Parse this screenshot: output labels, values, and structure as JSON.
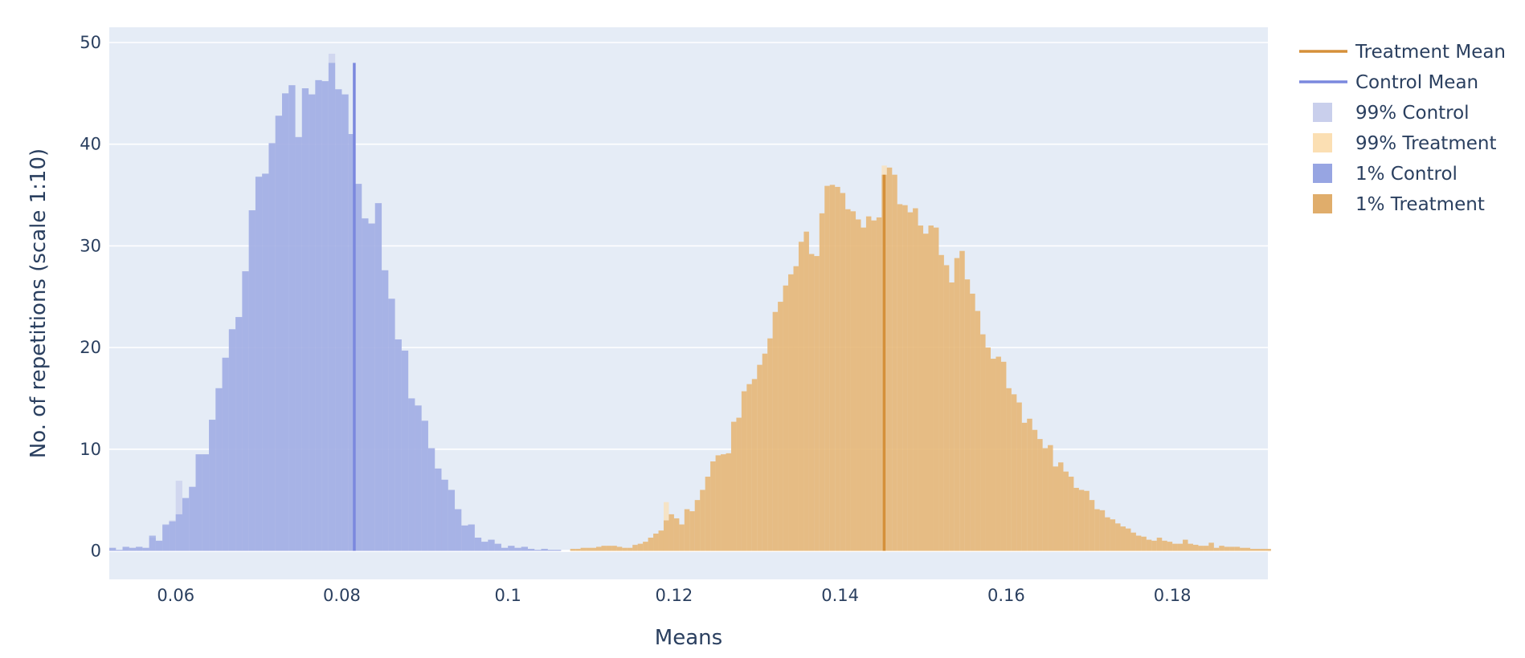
{
  "chart_data": {
    "type": "bar",
    "subtype": "overlaid-histogram",
    "xlabel": "Means",
    "ylabel": "No. of repetitions (scale 1:10)",
    "xlim": [
      0.052,
      0.1915
    ],
    "ylim": [
      -2.8,
      51.5
    ],
    "xticks": [
      {
        "value": 0.06,
        "label": "0.06"
      },
      {
        "value": 0.08,
        "label": "0.08"
      },
      {
        "value": 0.1,
        "label": "0.1"
      },
      {
        "value": 0.12,
        "label": "0.12"
      },
      {
        "value": 0.14,
        "label": "0.14"
      },
      {
        "value": 0.16,
        "label": "0.16"
      },
      {
        "value": 0.18,
        "label": "0.18"
      }
    ],
    "yticks": [
      {
        "value": 0,
        "label": "0"
      },
      {
        "value": 10,
        "label": "10"
      },
      {
        "value": 20,
        "label": "20"
      },
      {
        "value": 30,
        "label": "30"
      },
      {
        "value": 40,
        "label": "40"
      },
      {
        "value": 50,
        "label": "50"
      }
    ],
    "grid": true,
    "legend_position": "right",
    "colors": {
      "background": "#e5ecf6",
      "gridline": "#ffffff",
      "text": "#2a3f5f",
      "control_99": "#c9cfec",
      "control_1": "#97a5e2",
      "treatment_99": "#fbdfb3",
      "treatment_1": "#e0ad6b",
      "control_mean": "#7b88de",
      "treatment_mean": "#d5903a"
    },
    "legend": [
      {
        "name": "Treatment Mean",
        "kind": "line",
        "color": "#d5903a"
      },
      {
        "name": "Control Mean",
        "kind": "line",
        "color": "#7b88de"
      },
      {
        "name": "99% Control",
        "kind": "box",
        "color": "#c9cfec"
      },
      {
        "name": "99% Treatment",
        "kind": "box",
        "color": "#fbdfb3"
      },
      {
        "name": "1% Control",
        "kind": "box",
        "color": "#97a5e2"
      },
      {
        "name": "1% Treatment",
        "kind": "box",
        "color": "#e0ad6b"
      }
    ],
    "vlines": [
      {
        "name": "Control Mean",
        "x": 0.0815,
        "y": [
          0,
          48
        ],
        "color": "#7b88de"
      },
      {
        "name": "Treatment Mean",
        "x": 0.1453,
        "y": [
          0,
          37
        ],
        "color": "#d5903a"
      }
    ],
    "control": {
      "bin_start": 0.052,
      "bin_width": 0.0008,
      "values_99": [
        0.3,
        0.1,
        0.4,
        0.3,
        0.4,
        0.3,
        1.3,
        1.0,
        2.5,
        3.0,
        6.9,
        5.2,
        6.3,
        9.5,
        9.5,
        12.9,
        16.0,
        19.0,
        21.8,
        23.0,
        27.5,
        33.5,
        36.8,
        37.1,
        40.1,
        42.8,
        45.0,
        45.8,
        40.7,
        45.5,
        44.9,
        46.3,
        46.2,
        48.9,
        45.4,
        44.9,
        41.0,
        36.1,
        32.7,
        32.2,
        34.2,
        27.6,
        24.8,
        20.8,
        19.7,
        15.0,
        14.3,
        12.8,
        10.1,
        8.1,
        7.0,
        6.0,
        4.1,
        2.5,
        2.6,
        1.3,
        0.9,
        1.1,
        0.7,
        0.3,
        0.5,
        0.3,
        0.4,
        0.2,
        0.1,
        0.2,
        0.1,
        0.1
      ],
      "values_1": [
        0.3,
        0.1,
        0.4,
        0.3,
        0.4,
        0.3,
        1.5,
        1.0,
        2.6,
        2.9,
        3.6,
        5.2,
        6.3,
        9.5,
        9.5,
        12.9,
        16.0,
        19.0,
        21.8,
        23.0,
        27.5,
        33.5,
        36.8,
        37.1,
        40.1,
        42.8,
        45.0,
        45.8,
        40.7,
        45.5,
        44.9,
        46.3,
        46.2,
        48.0,
        45.4,
        44.9,
        41.0,
        36.1,
        32.7,
        32.2,
        34.2,
        27.6,
        24.8,
        20.8,
        19.7,
        15.0,
        14.3,
        12.8,
        10.1,
        8.1,
        7.0,
        6.0,
        4.1,
        2.5,
        2.6,
        1.3,
        0.9,
        1.1,
        0.7,
        0.3,
        0.5,
        0.3,
        0.4,
        0.2,
        0.1,
        0.2,
        0.1,
        0.1
      ]
    },
    "treatment": {
      "bin_start": 0.1075,
      "bin_width": 0.000625,
      "values_99": [
        0.2,
        0.2,
        0.3,
        0.3,
        0.3,
        0.4,
        0.5,
        0.5,
        0.5,
        0.4,
        0.3,
        0.3,
        0.5,
        0.7,
        0.9,
        1.3,
        1.7,
        2.0,
        4.8,
        3.6,
        3.2,
        2.6,
        4.1,
        3.9,
        5.0,
        6.0,
        7.3,
        8.8,
        9.4,
        9.5,
        9.6,
        12.7,
        13.1,
        15.7,
        16.4,
        16.9,
        18.3,
        19.4,
        20.9,
        23.5,
        24.5,
        26.1,
        27.2,
        28.0,
        30.4,
        31.4,
        29.2,
        29.0,
        33.2,
        35.9,
        36.0,
        35.8,
        35.2,
        33.6,
        33.4,
        32.6,
        31.8,
        32.9,
        32.5,
        32.8,
        37.9,
        37.7,
        37.0,
        34.1,
        34.0,
        33.3,
        33.7,
        32.0,
        31.2,
        32.0,
        31.8,
        29.1,
        28.1,
        26.4,
        28.8,
        29.5,
        26.7,
        25.3,
        23.6,
        21.3,
        20.0,
        18.9,
        19.1,
        18.6,
        16.0,
        15.4,
        14.6,
        12.6,
        13.0,
        11.9,
        11.0,
        10.1,
        10.4,
        8.3,
        8.7,
        7.8,
        7.3,
        6.2,
        6.0,
        5.9,
        5.0,
        4.1,
        4.0,
        3.3,
        3.1,
        2.7,
        2.4,
        2.2,
        1.8,
        1.5,
        1.4,
        1.1,
        1.0,
        1.3,
        1.0,
        0.9,
        0.7,
        0.7,
        1.1,
        0.7,
        0.6,
        0.5,
        0.5,
        0.8,
        0.3,
        0.5,
        0.4,
        0.4,
        0.4,
        0.3,
        0.3,
        0.2,
        0.2,
        0.2,
        0.2,
        0.2,
        0.1,
        0.1,
        0.1
      ],
      "values_1": [
        0.2,
        0.2,
        0.3,
        0.3,
        0.3,
        0.4,
        0.5,
        0.5,
        0.5,
        0.4,
        0.3,
        0.3,
        0.6,
        0.7,
        0.9,
        1.3,
        1.7,
        2.0,
        3.0,
        3.6,
        3.2,
        2.6,
        4.1,
        3.9,
        5.0,
        6.0,
        7.3,
        8.8,
        9.4,
        9.5,
        9.6,
        12.7,
        13.1,
        15.7,
        16.4,
        16.9,
        18.3,
        19.4,
        20.9,
        23.5,
        24.5,
        26.1,
        27.2,
        28.0,
        30.4,
        31.4,
        29.2,
        29.0,
        33.2,
        35.9,
        36.0,
        35.8,
        35.2,
        33.6,
        33.4,
        32.6,
        31.8,
        32.9,
        32.5,
        32.8,
        37.0,
        37.7,
        37.0,
        34.1,
        34.0,
        33.3,
        33.7,
        32.0,
        31.2,
        32.0,
        31.8,
        29.1,
        28.1,
        26.4,
        28.8,
        29.5,
        26.7,
        25.3,
        23.6,
        21.3,
        20.0,
        18.9,
        19.1,
        18.6,
        16.0,
        15.4,
        14.6,
        12.6,
        13.0,
        11.9,
        11.0,
        10.1,
        10.4,
        8.3,
        8.7,
        7.8,
        7.3,
        6.2,
        6.0,
        5.9,
        5.0,
        4.1,
        4.0,
        3.3,
        3.1,
        2.7,
        2.4,
        2.2,
        1.8,
        1.5,
        1.4,
        1.1,
        1.0,
        1.3,
        1.0,
        0.9,
        0.7,
        0.7,
        1.1,
        0.7,
        0.6,
        0.5,
        0.5,
        0.8,
        0.3,
        0.5,
        0.4,
        0.4,
        0.4,
        0.3,
        0.3,
        0.2,
        0.2,
        0.2,
        0.2,
        0.2,
        0.1,
        0.1,
        0.1
      ]
    }
  }
}
